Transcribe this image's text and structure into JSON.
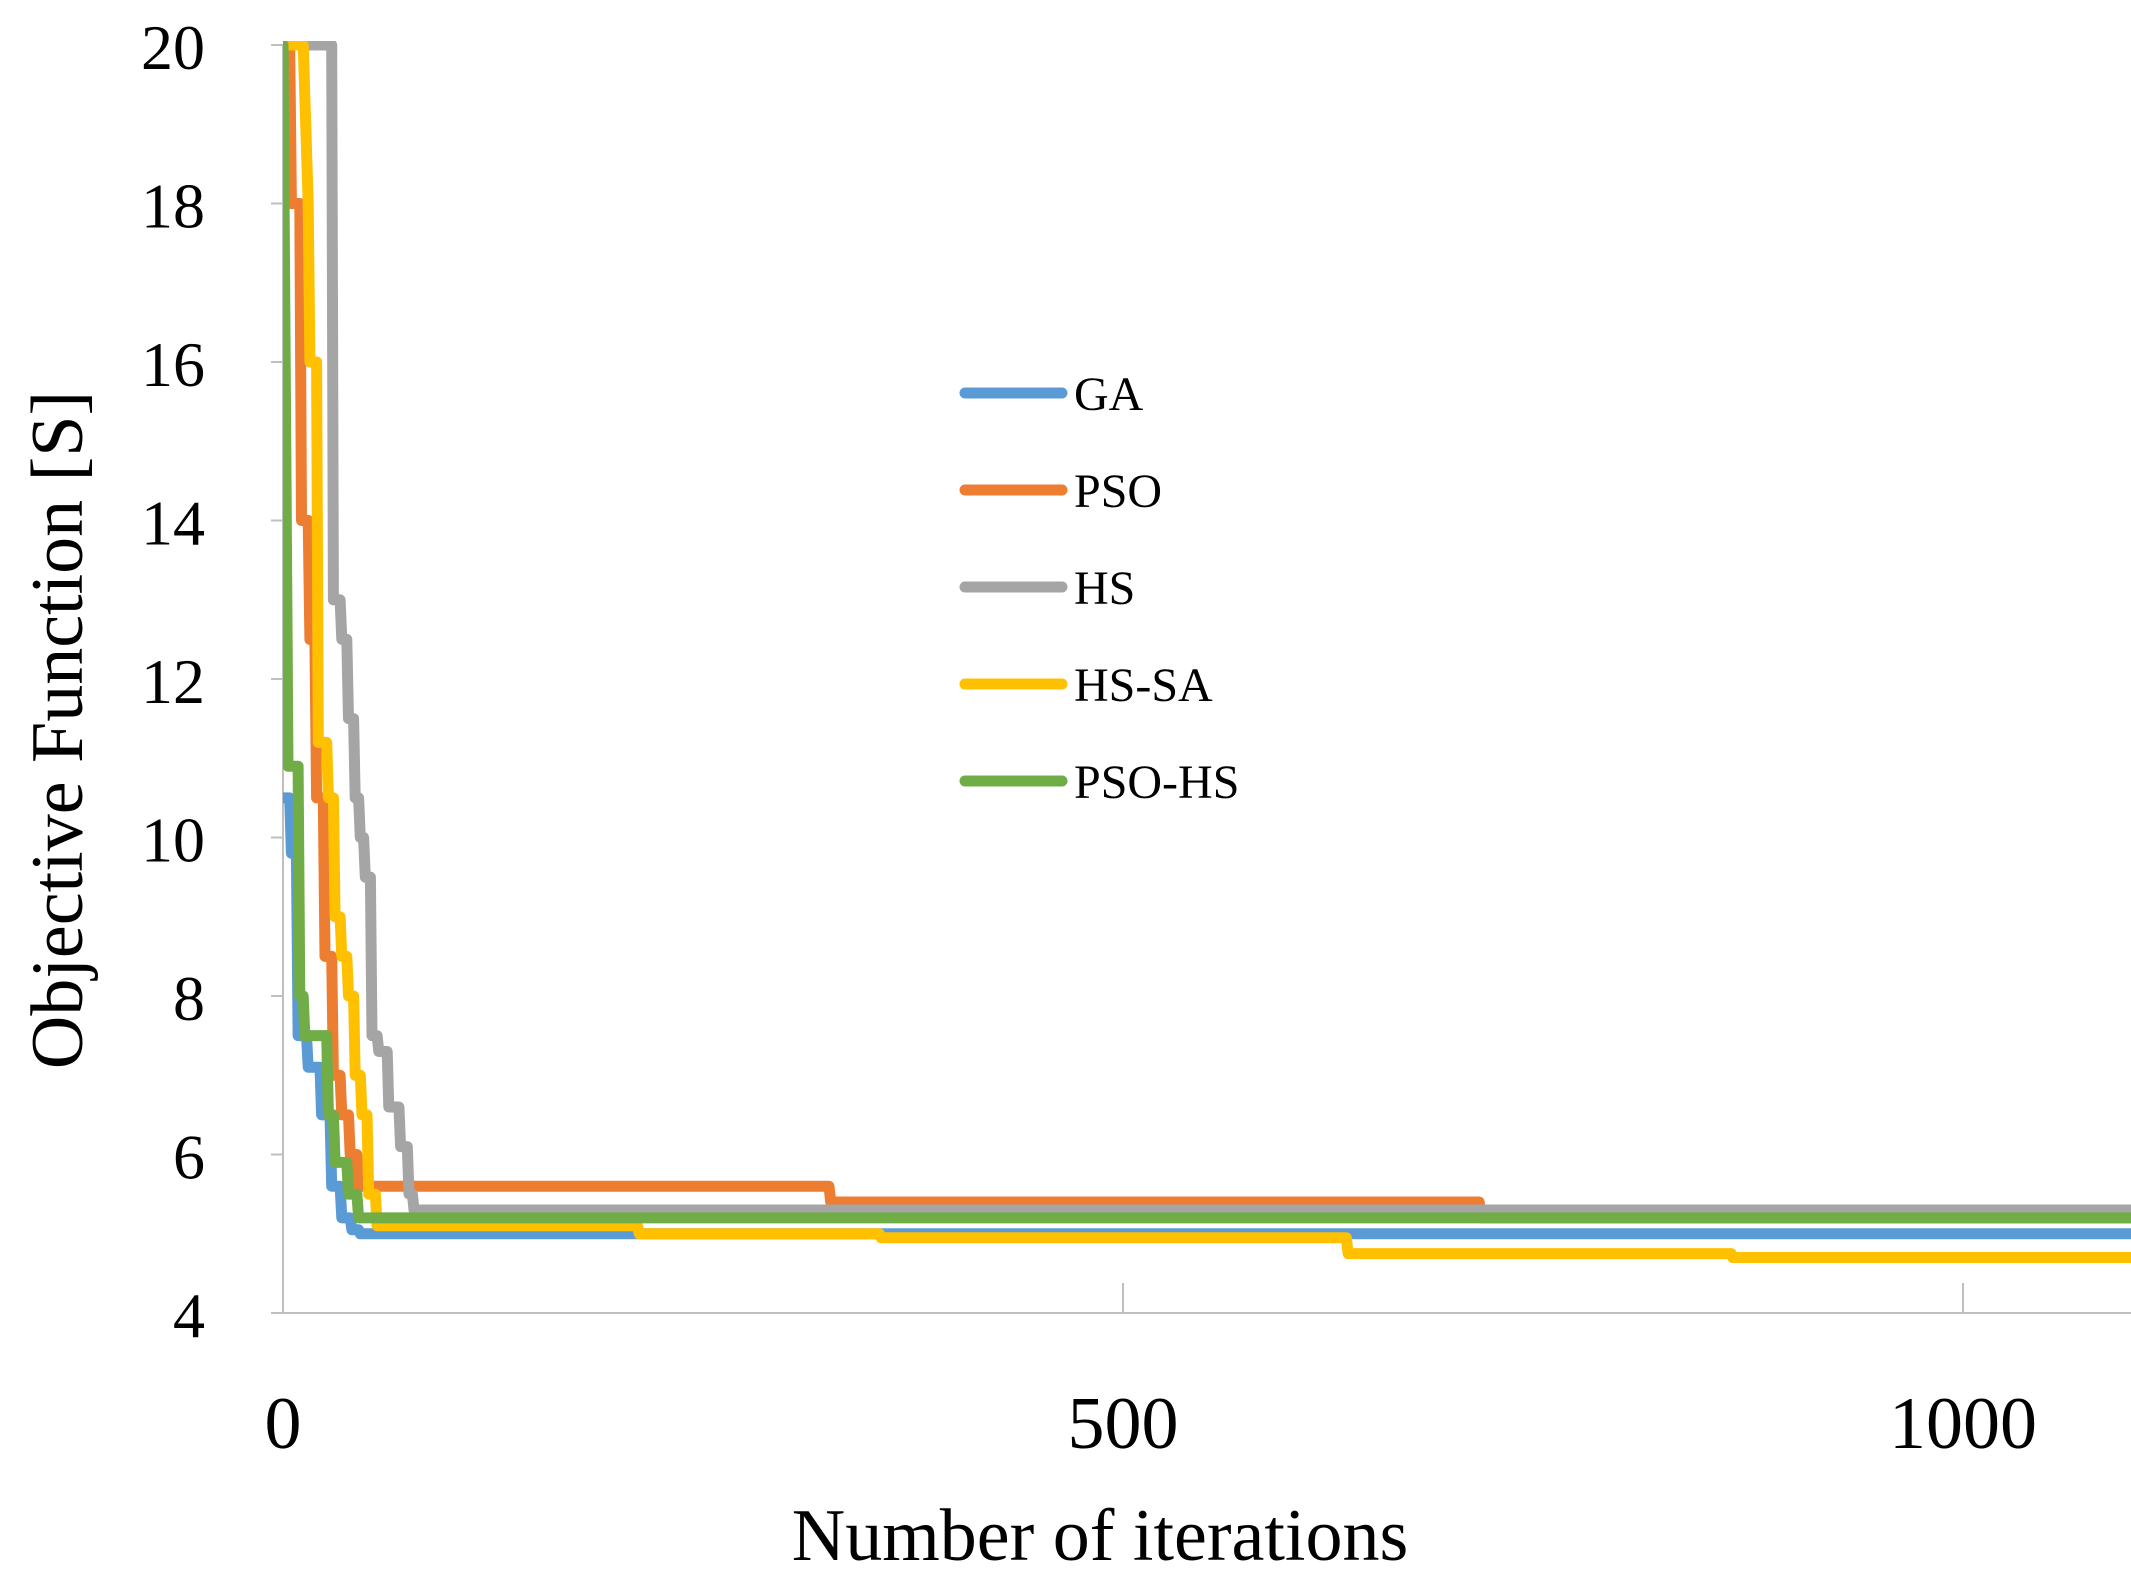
{
  "chart_data": {
    "type": "line",
    "title": "",
    "xlabel": "Number of iterations",
    "ylabel": "Objective Function [S]",
    "xlim": [
      0,
      1100
    ],
    "ylim": [
      4,
      20
    ],
    "xticks": [
      0,
      500,
      1000
    ],
    "xtick_labels": [
      "0",
      "500",
      "1000"
    ],
    "yticks": [
      4,
      6,
      8,
      10,
      12,
      14,
      16,
      18,
      20
    ],
    "ytick_labels": [
      "4",
      "6",
      "8",
      "10",
      "12",
      "14",
      "16",
      "18",
      "20"
    ],
    "grid": "vertical",
    "legend_position": "center",
    "series": [
      {
        "name": "GA",
        "color": "#5B9BD5",
        "x": [
          0,
          4,
          5,
          8,
          9,
          14,
          15,
          22,
          23,
          28,
          29,
          34,
          35,
          40,
          41,
          45,
          46,
          210,
          211,
          1100
        ],
        "y": [
          10.5,
          10.5,
          9.8,
          9.8,
          7.5,
          7.5,
          7.1,
          7.1,
          6.5,
          6.5,
          5.6,
          5.6,
          5.2,
          5.2,
          5.05,
          5.05,
          5.0,
          5.0,
          5.0,
          5.0
        ]
      },
      {
        "name": "PSO",
        "color": "#ED7D31",
        "x": [
          0,
          4,
          5,
          10,
          11,
          15,
          16,
          19,
          20,
          24,
          25,
          29,
          30,
          34,
          35,
          39,
          40,
          44,
          45,
          325,
          326,
          712,
          713,
          1100
        ],
        "y": [
          20,
          20,
          18,
          18,
          14,
          14,
          12.5,
          12.5,
          10.5,
          10.5,
          8.5,
          8.5,
          7.0,
          7.0,
          6.5,
          6.5,
          6.0,
          6.0,
          5.6,
          5.6,
          5.4,
          5.4,
          5.2,
          5.2
        ]
      },
      {
        "name": "HS",
        "color": "#A5A5A5",
        "x": [
          0,
          27,
          28,
          29,
          30,
          34,
          35,
          38,
          39,
          42,
          43,
          45,
          46,
          48,
          49,
          52,
          53,
          56,
          57,
          58,
          59,
          62,
          63,
          69,
          70,
          74,
          75,
          77,
          78,
          1100
        ],
        "y": [
          20,
          20,
          20,
          20,
          13,
          13,
          12.5,
          12.5,
          11.5,
          11.5,
          10.5,
          10.5,
          10,
          10,
          9.5,
          9.5,
          7.5,
          7.5,
          7.3,
          7.3,
          7.3,
          7.3,
          6.6,
          6.6,
          6.1,
          6.1,
          5.5,
          5.5,
          5.3,
          5.3
        ]
      },
      {
        "name": "HS-SA",
        "color": "#FFC000",
        "x": [
          0,
          10,
          12,
          15,
          16,
          20,
          21,
          26,
          27,
          30,
          31,
          34,
          35,
          38,
          39,
          42,
          43,
          46,
          47,
          50,
          51,
          55,
          56,
          211,
          212,
          355,
          356,
          633,
          634,
          862,
          863,
          1100
        ],
        "y": [
          20,
          20,
          20,
          18,
          16,
          16,
          11.2,
          11.2,
          10.5,
          10.5,
          9.0,
          9.0,
          8.5,
          8.5,
          8.0,
          8.0,
          7.0,
          7.0,
          6.5,
          6.5,
          5.5,
          5.5,
          5.1,
          5.1,
          5.0,
          5.0,
          4.95,
          4.95,
          4.75,
          4.75,
          4.7,
          4.7
        ]
      },
      {
        "name": "PSO-HS",
        "color": "#70AD47",
        "x": [
          0,
          3,
          4,
          9,
          10,
          12,
          13,
          26,
          27,
          30,
          31,
          38,
          39,
          44,
          45,
          1100
        ],
        "y": [
          20,
          10.9,
          10.9,
          10.9,
          8.0,
          8.0,
          7.5,
          7.5,
          6.5,
          6.5,
          5.9,
          5.9,
          5.5,
          5.5,
          5.2,
          5.2
        ]
      }
    ]
  }
}
